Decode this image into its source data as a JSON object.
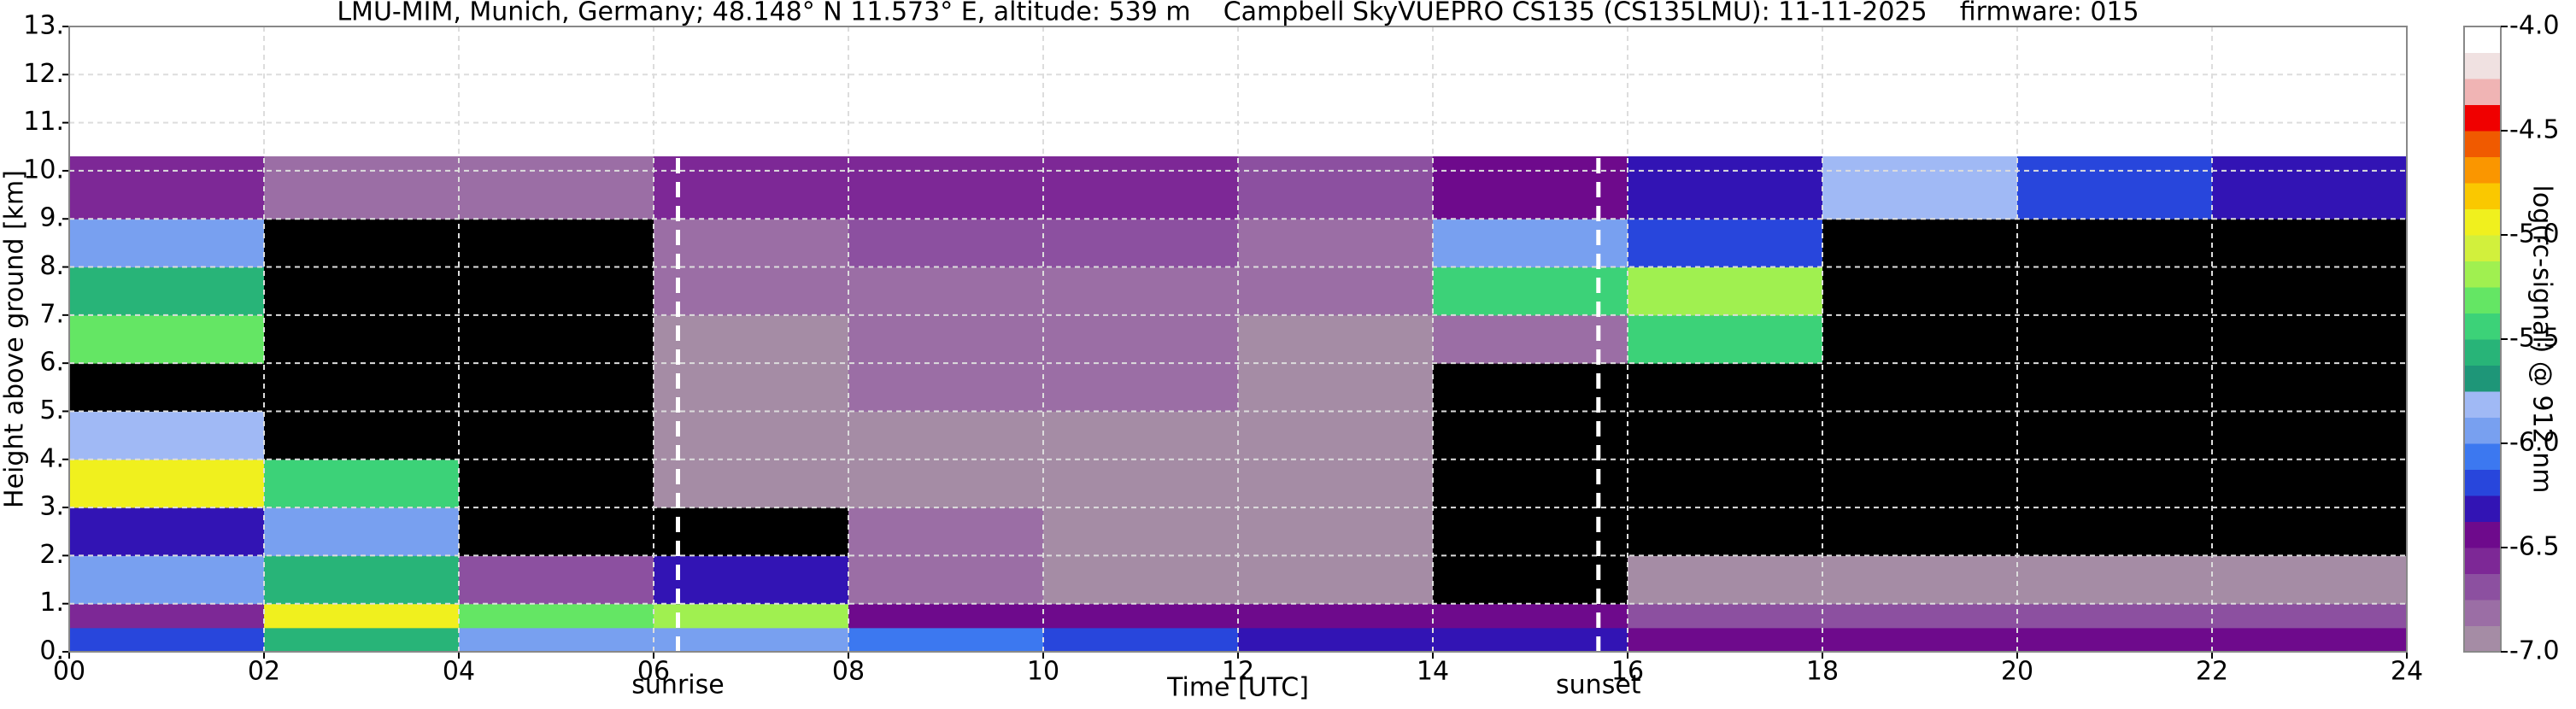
{
  "chart_data": {
    "type": "heatmap",
    "title": "LMU-MIM, Munich, Germany; 48.148° N 11.573° E, altitude: 539 m    Campbell SkyVUEPRO CS135 (CS135LMU): 11-11-2025    firmware: 015",
    "x_label": "Time [UTC]",
    "y_label": "Height above ground [km]",
    "colorbar_label": "log(rc-signal) @ 912 nm",
    "xlim": [
      0,
      24
    ],
    "xticks": [
      {
        "value": 0,
        "label": "00"
      },
      {
        "value": 2,
        "label": "02"
      },
      {
        "value": 4,
        "label": "04"
      },
      {
        "value": 6,
        "label": "06"
      },
      {
        "value": 8,
        "label": "08"
      },
      10,
      12,
      14,
      16,
      18,
      20,
      22,
      24
    ],
    "ylim": [
      0,
      13
    ],
    "yticks": [
      {
        "value": 0,
        "label": "0."
      },
      {
        "value": 1,
        "label": "1."
      },
      {
        "value": 2,
        "label": "2."
      },
      {
        "value": 3,
        "label": "3."
      },
      {
        "value": 4,
        "label": "4."
      },
      {
        "value": 5,
        "label": "5."
      },
      {
        "value": 6,
        "label": "6."
      },
      {
        "value": 7,
        "label": "7."
      },
      {
        "value": 8,
        "label": "8."
      },
      {
        "value": 9,
        "label": "9."
      },
      {
        "value": 10,
        "label": "10."
      },
      {
        "value": 11,
        "label": "11."
      },
      {
        "value": 12,
        "label": "12."
      },
      {
        "value": 13,
        "label": "13."
      }
    ],
    "clim": [
      -7.0,
      -4.0
    ],
    "cticks": [
      {
        "value": -7.0,
        "label": "-7.0"
      },
      {
        "value": -6.5,
        "label": "-6.5"
      },
      {
        "value": -6.0,
        "label": "-6.0"
      },
      {
        "value": -5.5,
        "label": "-5.5"
      },
      {
        "value": -5.0,
        "label": "-5.0"
      },
      {
        "value": -4.5,
        "label": "-4.5"
      },
      {
        "value": -4.0,
        "label": "-4.0"
      }
    ],
    "colormap": [
      "#a58ca5",
      "#9b6ea5",
      "#8c50a0",
      "#7d2896",
      "#6e0a8c",
      "#3214b4",
      "#2846dc",
      "#3c78f0",
      "#78a0f0",
      "#a0b9f5",
      "#1e9678",
      "#28b478",
      "#3cd278",
      "#64e664",
      "#a0f050",
      "#d2f03c",
      "#f0f01e",
      "#fac800",
      "#fa9600",
      "#f05a00",
      "#f00000",
      "#f0b4b4",
      "#f0e1e1",
      "#ffffff"
    ],
    "under_color": "#000000",
    "grid": true,
    "x_edges": [
      0,
      2,
      4,
      6,
      8,
      10,
      12,
      14,
      16,
      18,
      20,
      22,
      24
    ],
    "y_edges": [
      0,
      0.5,
      1,
      2,
      3,
      4,
      5,
      6,
      7,
      8,
      9,
      10.3
    ],
    "z": [
      [
        -6.2,
        -5.6,
        -5.9,
        -6.0,
        -6.1,
        -6.2,
        -6.3,
        -6.3,
        -6.4,
        -6.4,
        -6.5,
        -6.5
      ],
      [
        -6.6,
        -5.0,
        -5.3,
        -5.2,
        -6.4,
        -6.4,
        -6.5,
        -6.4,
        -6.7,
        -6.7,
        -6.7,
        -6.7
      ],
      [
        -6.0,
        -5.6,
        -6.7,
        -6.3,
        -6.8,
        -6.9,
        -6.9,
        -7.5,
        -6.9,
        -6.9,
        -6.9,
        -6.9
      ],
      [
        -6.3,
        -6.0,
        -7.5,
        -7.5,
        -6.8,
        -6.9,
        -6.9,
        -7.5,
        -7.5,
        -7.5,
        -7.5,
        -7.5
      ],
      [
        -5.0,
        -5.5,
        -7.5,
        -6.9,
        -6.9,
        -6.9,
        -6.9,
        -7.5,
        -7.5,
        -7.5,
        -7.5,
        -7.5
      ],
      [
        -5.8,
        -7.5,
        -7.5,
        -6.9,
        -6.9,
        -6.9,
        -6.9,
        -7.5,
        -7.5,
        -7.5,
        -7.5,
        -7.5
      ],
      [
        -7.5,
        -7.5,
        -7.5,
        -6.9,
        -6.8,
        -6.8,
        -6.9,
        -7.5,
        -7.5,
        -7.5,
        -7.5,
        -7.5
      ],
      [
        -5.3,
        -7.5,
        -7.5,
        -6.9,
        -6.8,
        -6.8,
        -6.9,
        -6.8,
        -5.4,
        -7.5,
        -7.5,
        -7.5
      ],
      [
        -5.6,
        -7.5,
        -7.5,
        -6.8,
        -6.8,
        -6.8,
        -6.8,
        -5.5,
        -5.2,
        -7.5,
        -7.5,
        -7.5
      ],
      [
        -6.0,
        -7.5,
        -7.5,
        -6.8,
        -6.7,
        -6.7,
        -6.8,
        -5.9,
        -6.2,
        -7.5,
        -7.5,
        -7.5
      ],
      [
        -6.6,
        -6.8,
        -6.8,
        -6.6,
        -6.6,
        -6.6,
        -6.7,
        -6.5,
        -6.3,
        -5.8,
        -6.2,
        -6.3
      ]
    ],
    "annotations": [
      {
        "text": "sunrise",
        "x": 6.25
      },
      {
        "text": "sunset",
        "x": 15.7
      }
    ]
  }
}
